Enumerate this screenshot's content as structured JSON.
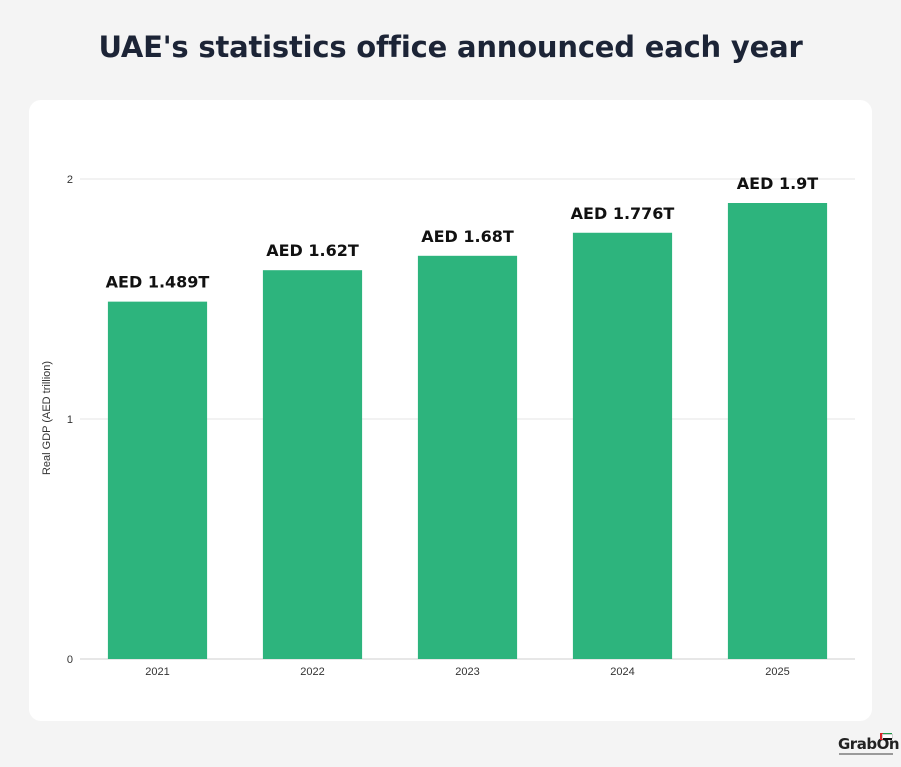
{
  "title": "UAE's statistics office announced each year",
  "chart_data": {
    "type": "bar",
    "categories": [
      "2021",
      "2022",
      "2023",
      "2024",
      "2025"
    ],
    "values": [
      1.489,
      1.62,
      1.68,
      1.776,
      1.9
    ],
    "data_labels": [
      "AED 1.489T",
      "AED 1.62T",
      "AED 1.68T",
      "AED 1.776T",
      "AED 1.9T"
    ],
    "title": "",
    "xlabel": "",
    "ylabel": "Real GDP (AED trillion)",
    "ylim": [
      0,
      2
    ],
    "yticks": [
      "0",
      "1",
      "2"
    ],
    "grid": true,
    "bar_color": "#2db47d"
  },
  "logo": {
    "text": "GrabOn"
  },
  "colors": {
    "background": "#f4f4f4",
    "card": "#ffffff",
    "title": "#1c2436"
  }
}
